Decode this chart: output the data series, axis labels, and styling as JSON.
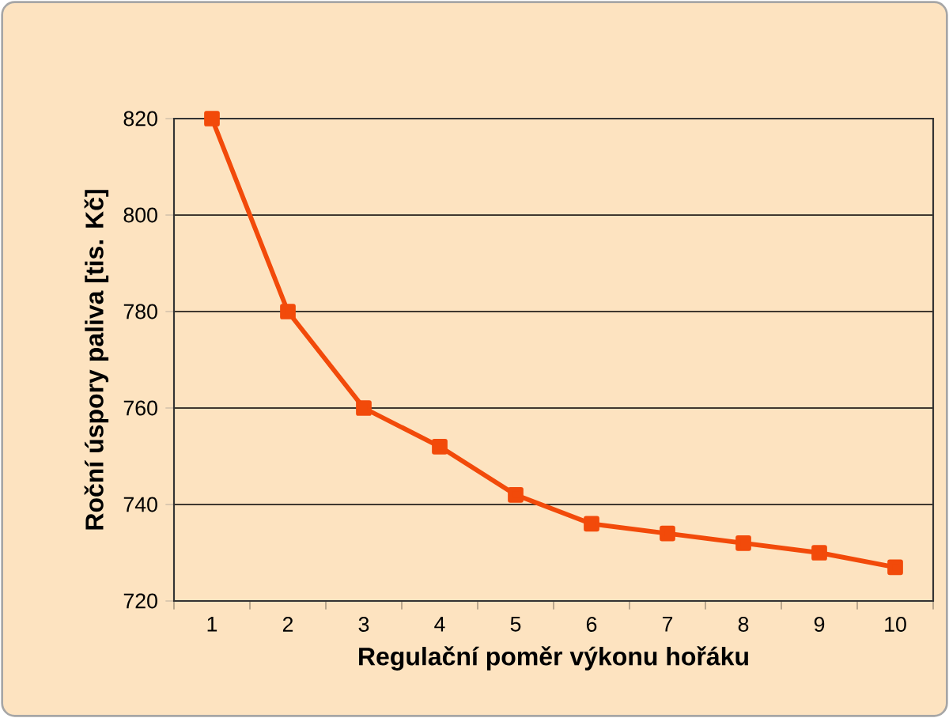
{
  "chart_data": {
    "type": "line",
    "xlabel": "Regulační poměr výkonu hořáku",
    "ylabel": "Roční úspory paliva [tis. Kč]",
    "categories": [
      "1",
      "2",
      "3",
      "4",
      "5",
      "6",
      "7",
      "8",
      "9",
      "10"
    ],
    "values": [
      820,
      780,
      760,
      752,
      742,
      736,
      734,
      732,
      730,
      727
    ],
    "color": "#f24a0a",
    "ylim": [
      720,
      820
    ],
    "yticks": [
      720,
      740,
      760,
      780,
      800,
      820
    ],
    "grid": "y",
    "marker": "square",
    "line_style": "solid"
  }
}
